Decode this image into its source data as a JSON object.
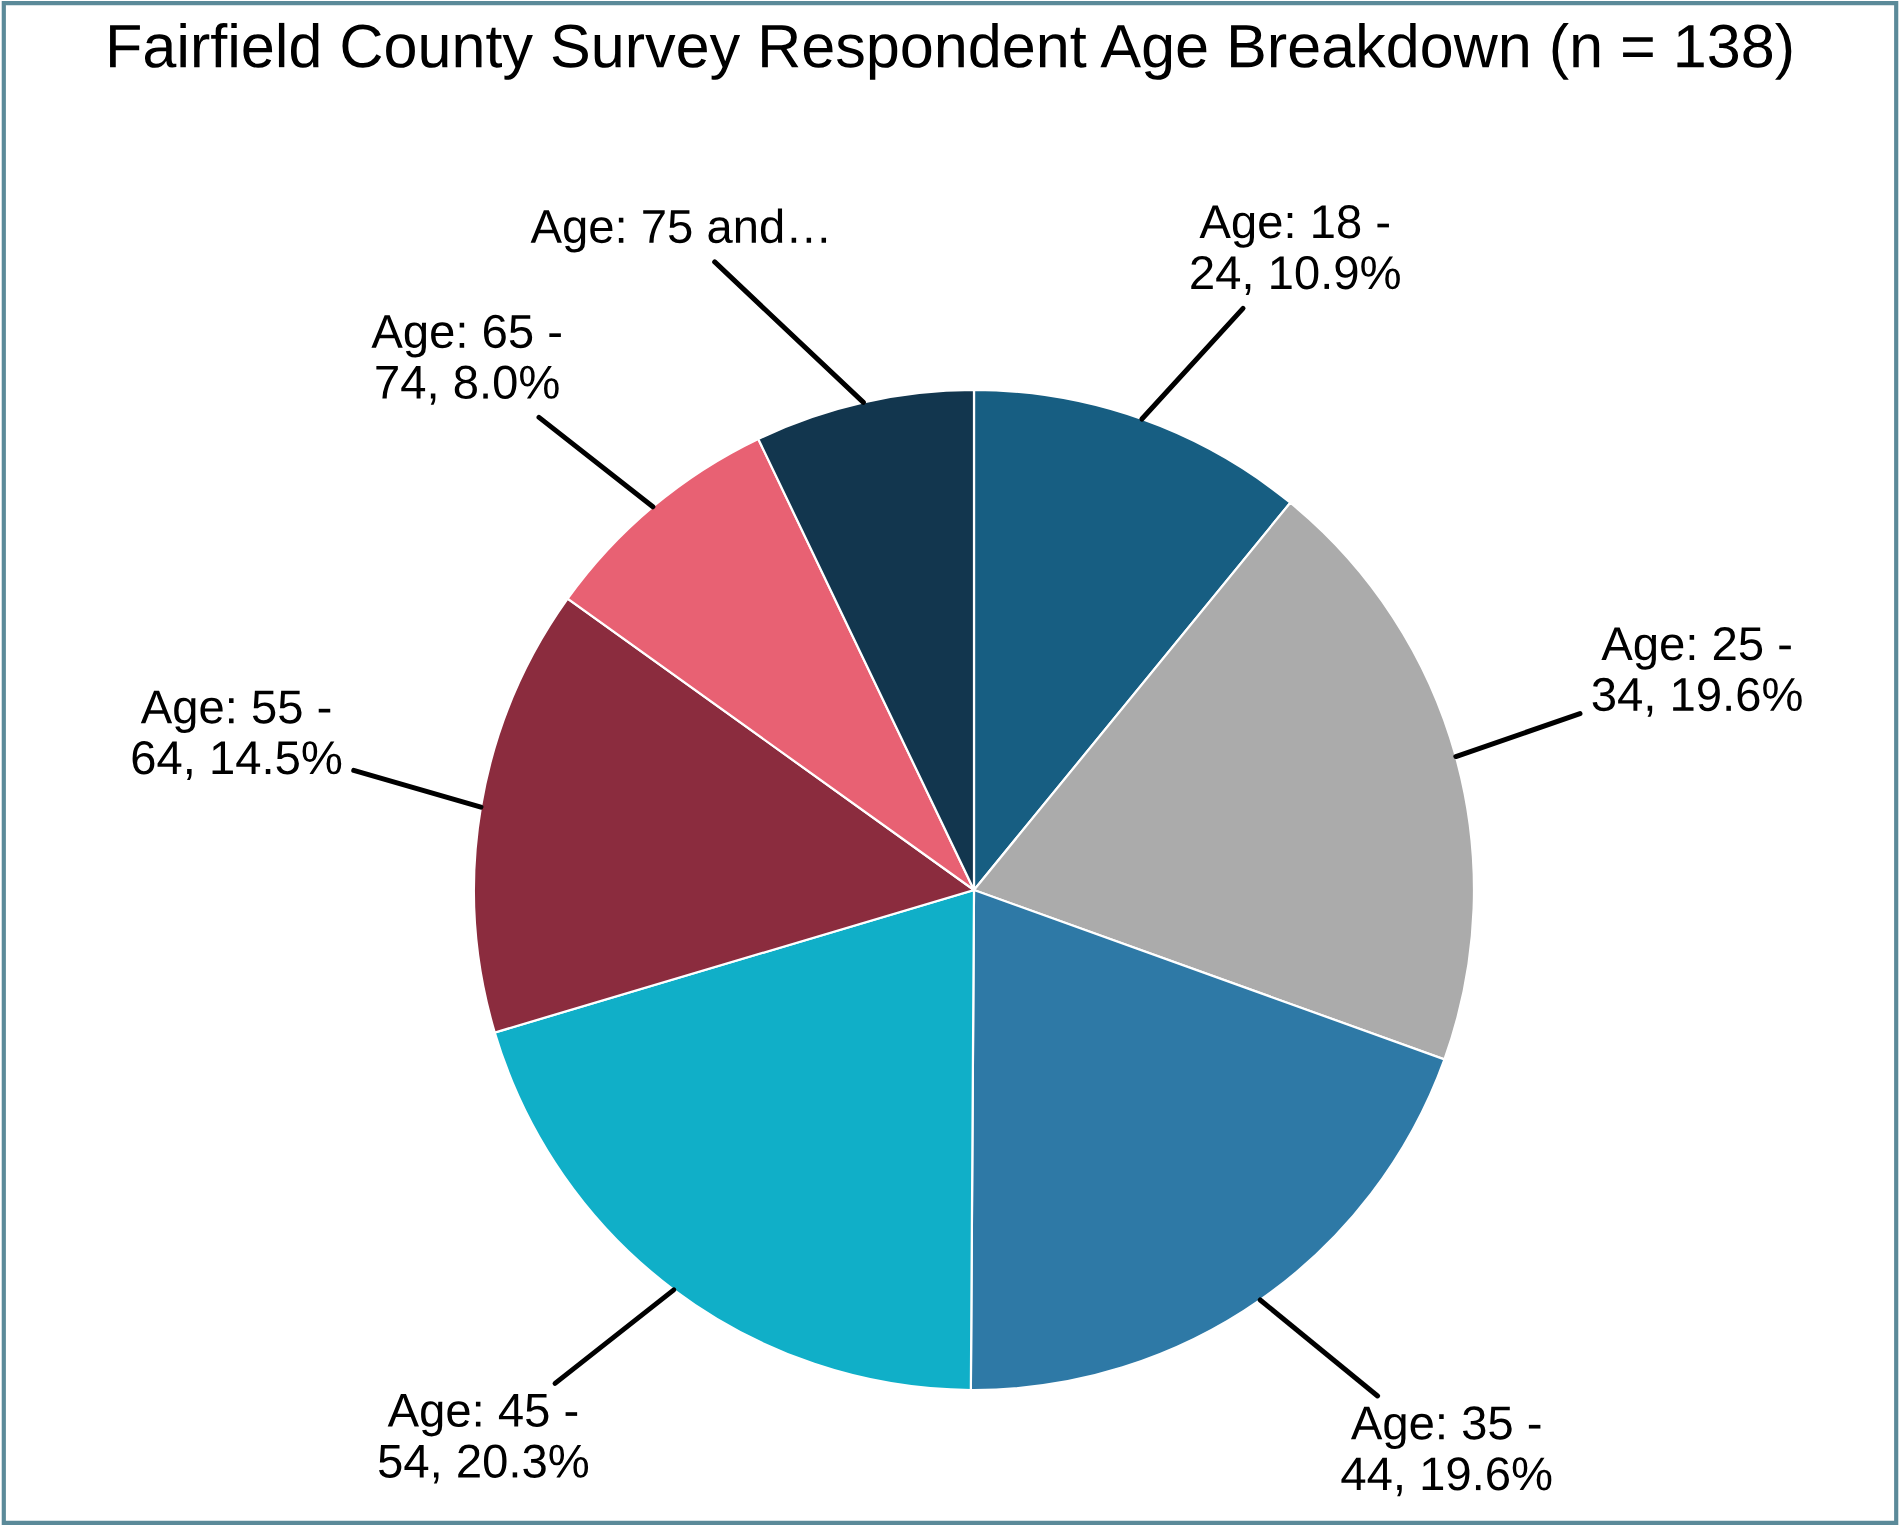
{
  "chart_data": {
    "type": "pie",
    "title": "Fairfield County Survey Respondent Age Breakdown (n = 138)",
    "categories": [
      "Age: 18 - 24",
      "Age: 25 - 34",
      "Age: 35 - 44",
      "Age: 45 - 54",
      "Age: 55 - 64",
      "Age: 65 - 74",
      "Age: 75 and…"
    ],
    "values": [
      10.9,
      19.6,
      19.6,
      20.3,
      14.5,
      8.0,
      7.1
    ],
    "value_labels": [
      "10.9%",
      "19.6%",
      "19.6%",
      "20.3%",
      "14.5%",
      "8.0%",
      null
    ],
    "colors": [
      "#175e82",
      "#ababab",
      "#2e79a6",
      "#10afc8",
      "#8b2c3e",
      "#e86173",
      "#12364e"
    ],
    "legend": false
  }
}
